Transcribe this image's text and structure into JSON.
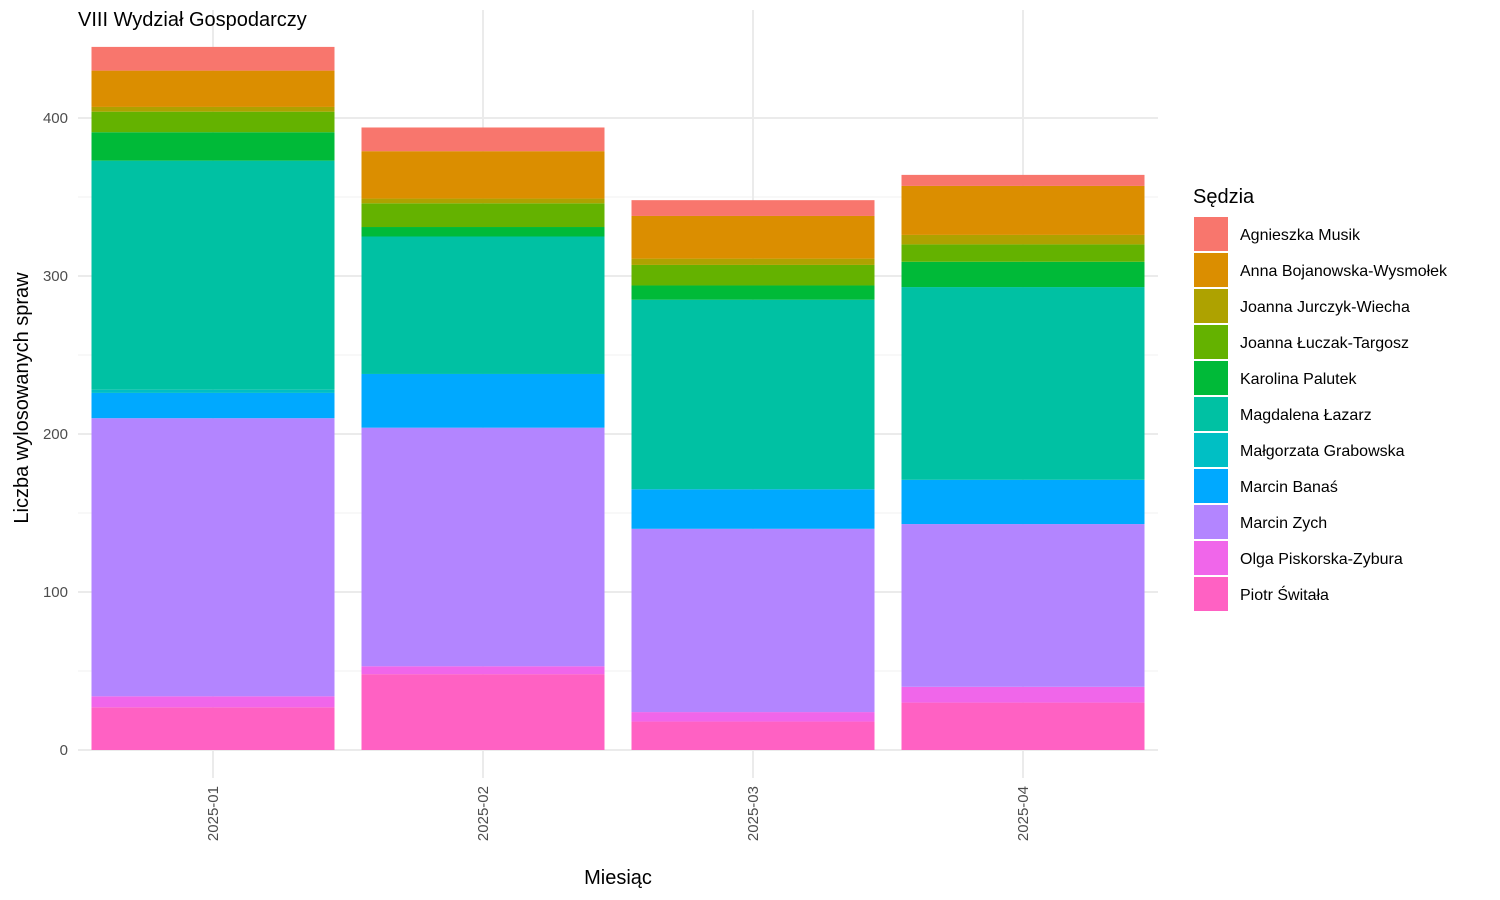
{
  "chart_data": {
    "type": "bar",
    "stacked": true,
    "title": "VIII Wydział Gospodarczy",
    "xlabel": "Miesiąc",
    "ylabel": "Liczba wylosowanych spraw",
    "categories": [
      "2025-01",
      "2025-02",
      "2025-03",
      "2025-04"
    ],
    "ylim": [
      0,
      445
    ],
    "yticks": [
      "0",
      "100",
      "200",
      "300",
      "400"
    ],
    "grid": true,
    "legend": {
      "title": "Sędzia",
      "position": "right"
    },
    "series": [
      {
        "name": "Piotr Świtała",
        "color": "#FF61C3",
        "values": [
          27,
          48,
          18,
          30
        ]
      },
      {
        "name": "Olga Piskorska-Zybura",
        "color": "#F066EA",
        "values": [
          7,
          5,
          6,
          10
        ]
      },
      {
        "name": "Marcin Zych",
        "color": "#B385FF",
        "values": [
          176,
          151,
          116,
          103
        ]
      },
      {
        "name": "Marcin Banaś",
        "color": "#00A9FF",
        "values": [
          16,
          34,
          25,
          28
        ]
      },
      {
        "name": "Małgorzata Grabowska",
        "color": "#00BFC4",
        "values": [
          2,
          0,
          0,
          0
        ]
      },
      {
        "name": "Magdalena Łazarz",
        "color": "#00C1A3",
        "values": [
          145,
          87,
          120,
          122
        ]
      },
      {
        "name": "Karolina Palutek",
        "color": "#00BA38",
        "values": [
          18,
          6,
          9,
          16
        ]
      },
      {
        "name": "Joanna Łuczak-Targosz",
        "color": "#64B200",
        "values": [
          13,
          15,
          13,
          11
        ]
      },
      {
        "name": "Joanna Jurczyk-Wiecha",
        "color": "#AEA200",
        "values": [
          3,
          3,
          4,
          6
        ]
      },
      {
        "name": "Anna Bojanowska-Wysmołek",
        "color": "#DB8E00",
        "values": [
          23,
          30,
          27,
          31
        ]
      },
      {
        "name": "Agnieszka Musik",
        "color": "#F8766D",
        "values": [
          15,
          15,
          10,
          7
        ]
      }
    ],
    "legend_order": [
      "Agnieszka Musik",
      "Anna Bojanowska-Wysmołek",
      "Joanna Jurczyk-Wiecha",
      "Joanna Łuczak-Targosz",
      "Karolina Palutek",
      "Magdalena Łazarz",
      "Małgorzata Grabowska",
      "Marcin Banaś",
      "Marcin Zych",
      "Olga Piskorska-Zybura",
      "Piotr Świtała"
    ]
  }
}
